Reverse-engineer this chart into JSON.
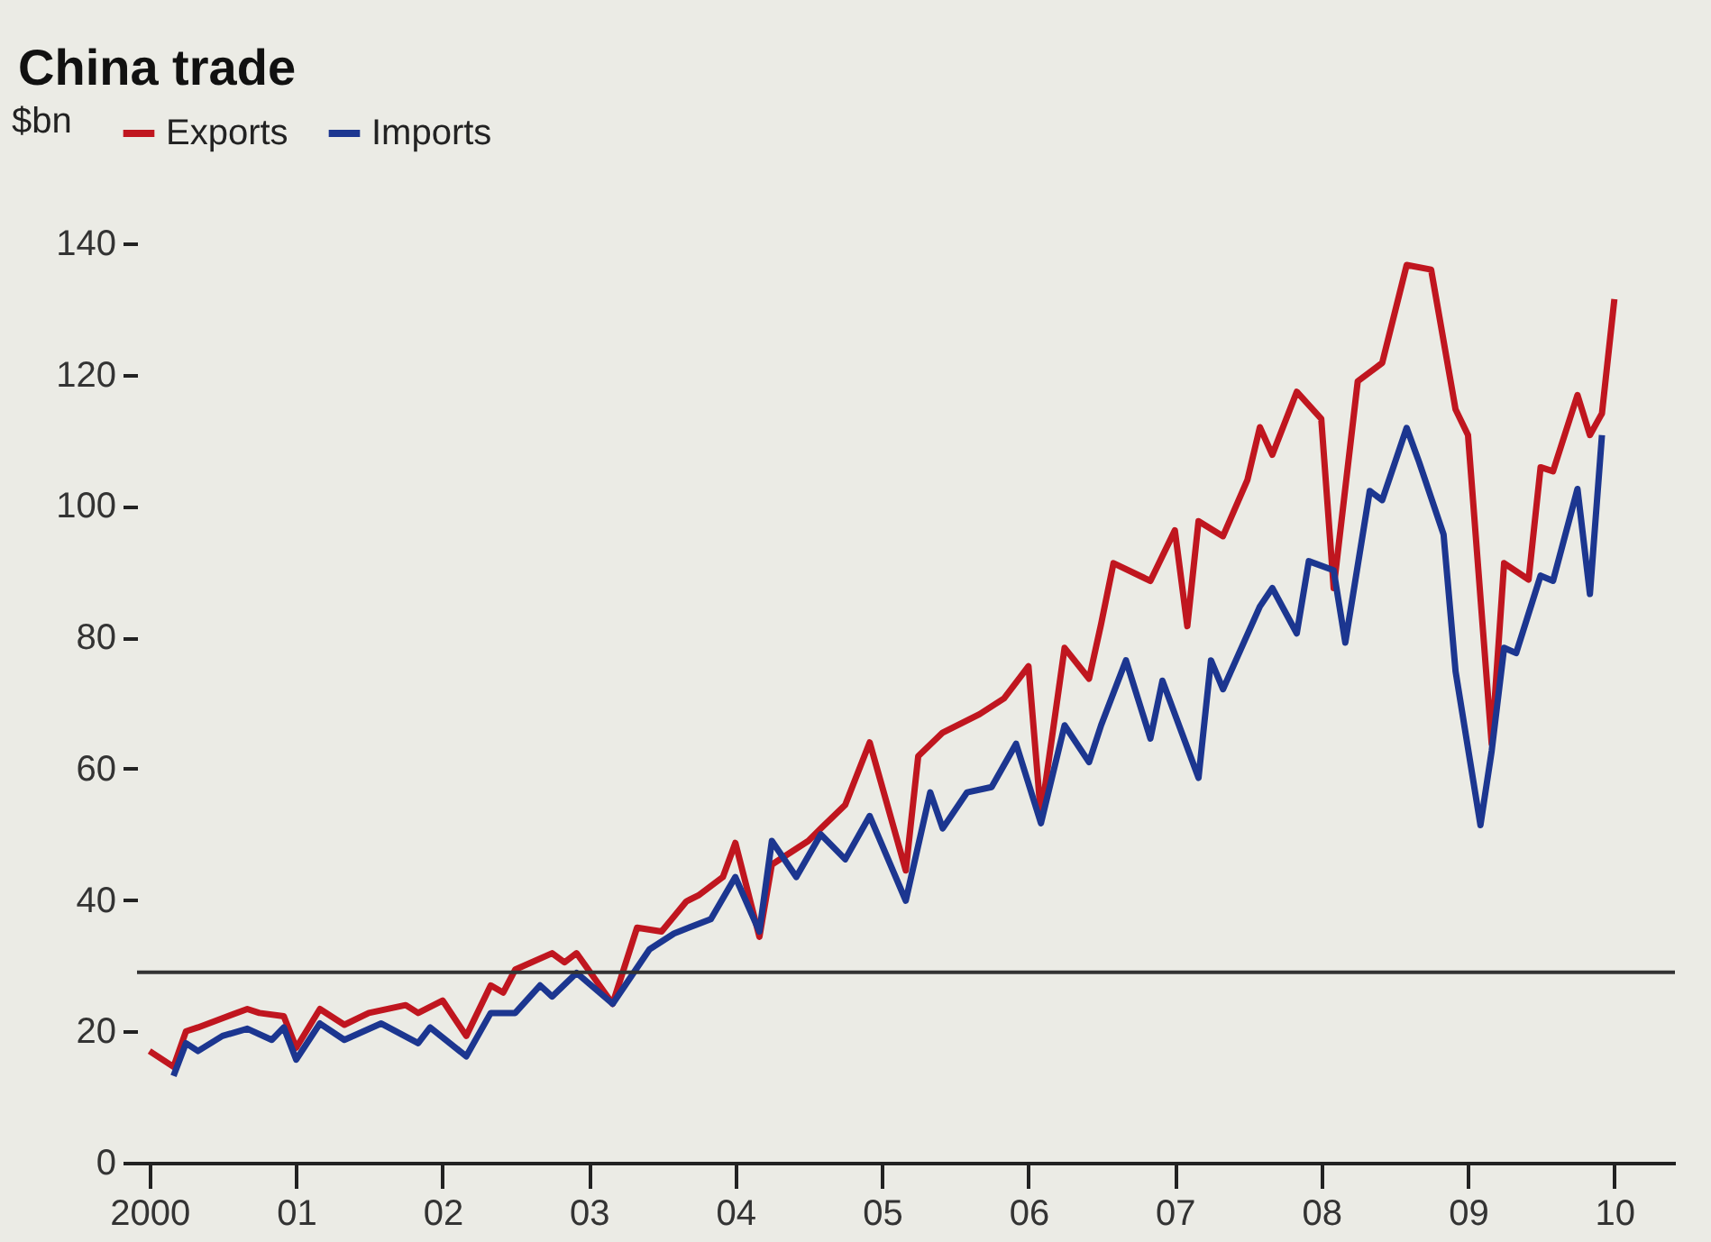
{
  "chart_data": {
    "type": "line",
    "title": "China trade",
    "ylabel": "$bn",
    "x": [
      "2000-01",
      "2000-03",
      "2000-04",
      "2000-05",
      "2000-07",
      "2000-09",
      "2000-10",
      "2000-12",
      "2001-01",
      "2001-03",
      "2001-05",
      "2001-07",
      "2001-10",
      "2001-11",
      "2002-01",
      "2002-03",
      "2002-05",
      "2002-06",
      "2002-07",
      "2002-10",
      "2002-11",
      "2002-12",
      "2003-03",
      "2003-05",
      "2003-07",
      "2003-09",
      "2003-10",
      "2003-12",
      "2004-01",
      "2004-03",
      "2004-04",
      "2004-07",
      "2004-08",
      "2004-10",
      "2004-12",
      "2005-03",
      "2005-04",
      "2005-06",
      "2005-09",
      "2005-11",
      "2006-01",
      "2006-02",
      "2006-04",
      "2006-06",
      "2006-07",
      "2006-08",
      "2006-11",
      "2007-01",
      "2007-02",
      "2007-03",
      "2007-05",
      "2007-07",
      "2007-08",
      "2007-09",
      "2007-11",
      "2008-01",
      "2008-02",
      "2008-04",
      "2008-06",
      "2008-08",
      "2008-10",
      "2008-12",
      "2009-01",
      "2009-03",
      "2009-04",
      "2009-06",
      "2009-07",
      "2009-08",
      "2009-10",
      "2009-11",
      "2009-12",
      "2010-01"
    ],
    "series": [
      {
        "name": "Exports",
        "color": "#c0161f",
        "values": [
          17,
          14.6,
          20,
          20.6,
          22,
          23.4,
          22.8,
          22.3,
          17.5,
          23.4,
          21,
          22.8,
          24,
          22.8,
          24.7,
          19.3,
          27,
          25.9,
          29.4,
          31.9,
          30.5,
          31.9,
          24.2,
          35.8,
          35.2,
          39.8,
          40.7,
          43.5,
          48.7,
          34.4,
          45.4,
          49,
          50.9,
          54.5,
          64,
          44.5,
          61.9,
          65.5,
          68.3,
          70.7,
          75.6,
          52.8,
          78.4,
          73.7,
          82,
          91.3,
          88.6,
          96.3,
          81.7,
          97.7,
          95.4,
          104,
          112,
          107.8,
          117.4,
          113.3,
          87.5,
          119,
          121.8,
          136.7,
          136,
          114.7,
          110.8,
          63.8,
          91.3,
          88.8,
          105.9,
          105.3,
          116.9,
          110.8,
          114.1,
          131.5
        ]
      },
      {
        "name": "Imports",
        "color": "#1c3690",
        "x": [
          "2000-03",
          "2000-04",
          "2000-05",
          "2000-07",
          "2000-09",
          "2000-11",
          "2000-12",
          "2001-01",
          "2001-03",
          "2001-05",
          "2001-08",
          "2001-11",
          "2001-12",
          "2002-03",
          "2002-05",
          "2002-07",
          "2002-09",
          "2002-10",
          "2002-12",
          "2003-03",
          "2003-06",
          "2003-08",
          "2003-11",
          "2004-01",
          "2004-03",
          "2004-04",
          "2004-06",
          "2004-08",
          "2004-10",
          "2004-12",
          "2005-03",
          "2005-05",
          "2005-06",
          "2005-08",
          "2005-10",
          "2005-12",
          "2006-02",
          "2006-04",
          "2006-06",
          "2006-07",
          "2006-09",
          "2006-11",
          "2006-12",
          "2007-03",
          "2007-04",
          "2007-05",
          "2007-08",
          "2007-09",
          "2007-11",
          "2007-12",
          "2008-02",
          "2008-03",
          "2008-05",
          "2008-06",
          "2008-08",
          "2008-09",
          "2008-11",
          "2008-12",
          "2009-02",
          "2009-03",
          "2009-04",
          "2009-05",
          "2009-07",
          "2009-08",
          "2009-10",
          "2009-11",
          "2009-12"
        ],
        "values": [
          13.2,
          18.2,
          17,
          19.3,
          20.4,
          18.7,
          20.6,
          15.7,
          21.2,
          18.7,
          21.2,
          18.2,
          20.6,
          16.2,
          22.8,
          22.8,
          27,
          25.3,
          28.9,
          24.2,
          32.5,
          34.9,
          37.1,
          43.5,
          35.2,
          49,
          43.5,
          50,
          46.2,
          52.8,
          39.9,
          56.4,
          50.9,
          56.4,
          57.2,
          63.8,
          51.7,
          66.6,
          61,
          66.6,
          76.5,
          64.6,
          73.4,
          58.6,
          76.5,
          72.1,
          84.7,
          87.5,
          80.6,
          91.6,
          90.2,
          79.2,
          102.3,
          100.9,
          111.9,
          106.7,
          95.7,
          74.8,
          51.4,
          62.7,
          78.4,
          77.6,
          89.4,
          88.6,
          102.6,
          86.6,
          110.8
        ]
      }
    ],
    "xlim": [
      "1999-12",
      "2010-06"
    ],
    "xticks": [
      {
        "value": "2000",
        "label": "2000"
      },
      {
        "value": "2001",
        "label": "01"
      },
      {
        "value": "2002",
        "label": "02"
      },
      {
        "value": "2003",
        "label": "03"
      },
      {
        "value": "2004",
        "label": "04"
      },
      {
        "value": "2005",
        "label": "05"
      },
      {
        "value": "2006",
        "label": "06"
      },
      {
        "value": "2007",
        "label": "07"
      },
      {
        "value": "2008",
        "label": "08"
      },
      {
        "value": "2009",
        "label": "09"
      },
      {
        "value": "2010",
        "label": "10"
      }
    ],
    "ylim": [
      0,
      140
    ],
    "yticks": [
      0,
      20,
      40,
      60,
      80,
      100,
      120,
      140
    ],
    "ref_lines": [
      {
        "axis": "y",
        "value": 29,
        "color": "#333333"
      }
    ],
    "legend": "top left",
    "grid": false,
    "line_style": "solid",
    "marker": "none"
  }
}
